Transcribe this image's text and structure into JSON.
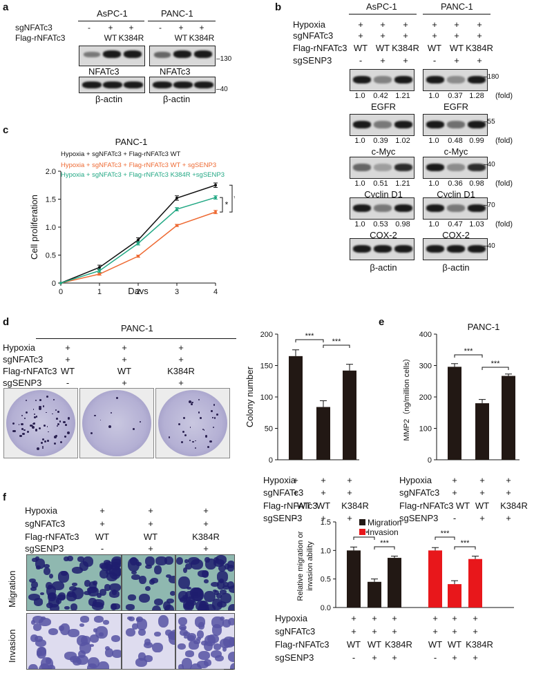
{
  "panels": {
    "a": "a",
    "b": "b",
    "c": "c",
    "d": "d",
    "e": "e",
    "f": "f"
  },
  "panel_a": {
    "cell_lines": [
      "AsPC-1",
      "PANC-1"
    ],
    "rows": [
      "sgNFATc3",
      "Flag-rNFATc3"
    ],
    "sg_values": [
      "-",
      "+",
      "+",
      "-",
      "+",
      "+"
    ],
    "flag_values": [
      "",
      "WT",
      "K384R",
      "",
      "WT",
      "K384R"
    ],
    "blot_labels": [
      "NFATc3",
      "β-actin"
    ],
    "markers": [
      "130",
      "40"
    ]
  },
  "panel_b": {
    "cell_lines": [
      "AsPC-1",
      "PANC-1"
    ],
    "rows": [
      "Hypoxia",
      "sgNFATc3",
      "Flag-rNFATc3",
      "sgSENP3"
    ],
    "hypoxia": [
      "+",
      "+",
      "+",
      "+",
      "+",
      "+"
    ],
    "sgnfatc3": [
      "+",
      "+",
      "+",
      "+",
      "+",
      "+"
    ],
    "flag": [
      "WT",
      "WT",
      "K384R",
      "WT",
      "WT",
      "K384R"
    ],
    "sgsenp3": [
      "-",
      "+",
      "+",
      "-",
      "+",
      "+"
    ],
    "blots": [
      {
        "label": "EGFR",
        "marker": "180",
        "fold_left": [
          "1.0",
          "0.42",
          "1.21"
        ],
        "fold_right": [
          "1.0",
          "0.37",
          "1.28"
        ]
      },
      {
        "label": "c-Myc",
        "marker": "55",
        "fold_left": [
          "1.0",
          "0.39",
          "1.02"
        ],
        "fold_right": [
          "1.0",
          "0.48",
          "0.99"
        ]
      },
      {
        "label": "Cyclin D1",
        "marker": "40",
        "fold_left": [
          "1.0",
          "0.51",
          "1.21"
        ],
        "fold_right": [
          "1.0",
          "0.36",
          "0.98"
        ]
      },
      {
        "label": "COX-2",
        "marker": "70",
        "fold_left": [
          "1.0",
          "0.53",
          "0.98"
        ],
        "fold_right": [
          "1.0",
          "0.47",
          "1.03"
        ]
      },
      {
        "label": "β-actin",
        "marker": "40",
        "fold_left": [],
        "fold_right": []
      }
    ],
    "fold_unit": "(fold)"
  },
  "chart_data": [
    {
      "id": "c",
      "type": "line",
      "title": "PANC-1",
      "xlabel": "Days",
      "ylabel": "Cell proliferation",
      "x": [
        0,
        1,
        2,
        3,
        4
      ],
      "xlim": [
        0,
        4
      ],
      "ylim": [
        0,
        2.0
      ],
      "yticks": [
        "0",
        "0.5",
        "1.0",
        "1.5",
        "2.0"
      ],
      "xticks": [
        "0",
        "1",
        "2",
        "3",
        "4"
      ],
      "series": [
        {
          "name": "Hypoxia + sgNFATc3 + Flag-rNFATc3 WT",
          "color": "#111111",
          "values": [
            0,
            0.28,
            0.77,
            1.52,
            1.75
          ],
          "err": [
            0,
            0.04,
            0.04,
            0.04,
            0.04
          ]
        },
        {
          "name": "Hypoxia + sgNFATc3 + Flag-rNFATc3 WT + sgSENP3",
          "color": "#ee6a33",
          "values": [
            0,
            0.16,
            0.48,
            1.03,
            1.27
          ],
          "err": [
            0,
            0.02,
            0.02,
            0.02,
            0.03
          ]
        },
        {
          "name": "Hypoxia + sgNFATc3 + Flag-rNFATc3 K384R +sgSENP3",
          "color": "#22a884",
          "values": [
            0,
            0.22,
            0.71,
            1.32,
            1.53
          ],
          "err": [
            0,
            0.03,
            0.03,
            0.03,
            0.03
          ]
        }
      ],
      "sig": [
        "*",
        "**"
      ]
    },
    {
      "id": "d",
      "type": "bar",
      "ylabel": "Colony number",
      "ylim": [
        0,
        200
      ],
      "yticks": [
        "0",
        "50",
        "100",
        "150",
        "200"
      ],
      "values": [
        165,
        84,
        142
      ],
      "err": [
        10,
        10,
        10
      ],
      "color": "#221814",
      "sig": [
        "***",
        "***"
      ]
    },
    {
      "id": "e",
      "type": "bar",
      "title": "PANC-1",
      "ylabel": "MMP2（ng/million cells）",
      "ylim": [
        0,
        400
      ],
      "yticks": [
        "0",
        "100",
        "200",
        "300",
        "400"
      ],
      "values": [
        296,
        180,
        267
      ],
      "err": [
        10,
        12,
        6
      ],
      "color": "#221814",
      "sig": [
        "***",
        "***"
      ]
    },
    {
      "id": "f",
      "type": "bar",
      "ylabel": "Relative migration or invasion ability",
      "ylim": [
        0,
        1.5
      ],
      "yticks": [
        "0.0",
        "0.5",
        "1.0",
        "1.5"
      ],
      "series": [
        {
          "name": "Migration",
          "color": "#221814",
          "values": [
            1.0,
            0.45,
            0.87
          ],
          "err": [
            0.06,
            0.05,
            0.03
          ]
        },
        {
          "name": "Invasion",
          "color": "#e8171b",
          "values": [
            1.0,
            0.41,
            0.85
          ],
          "err": [
            0.05,
            0.06,
            0.05
          ]
        }
      ],
      "sig": [
        "***",
        "***",
        "***",
        "***"
      ]
    }
  ],
  "panel_d": {
    "title": "PANC-1",
    "rows": [
      "Hypoxia",
      "sgNFATc3",
      "Flag-rNFATc3",
      "sgSENP3"
    ],
    "cols": [
      [
        "+",
        "+",
        "WT",
        "-"
      ],
      [
        "+",
        "+",
        "WT",
        "+"
      ],
      [
        "+",
        "+",
        "K384R",
        "+"
      ]
    ]
  },
  "condition_table": {
    "rows": [
      "Hypoxia",
      "sgNFATc3",
      "Flag-rNFATc3",
      "sgSENP3"
    ],
    "hypoxia": [
      "+",
      "+",
      "+"
    ],
    "sgnfatc3": [
      "+",
      "+",
      "+"
    ],
    "flag": [
      "WT",
      "WT",
      "K384R"
    ],
    "sgsenp3": [
      "-",
      "+",
      "+"
    ]
  },
  "panel_f": {
    "rows": [
      "Hypoxia",
      "sgNFATc3",
      "Flag-rNFATc3",
      "sgSENP3"
    ],
    "cols": [
      [
        "+",
        "+",
        "WT",
        "-"
      ],
      [
        "+",
        "+",
        "WT",
        "+"
      ],
      [
        "+",
        "+",
        "K384R",
        "+"
      ]
    ],
    "row_labels": [
      "Migration",
      "Invasion"
    ],
    "legend": [
      "Migration",
      "Invasion"
    ]
  }
}
